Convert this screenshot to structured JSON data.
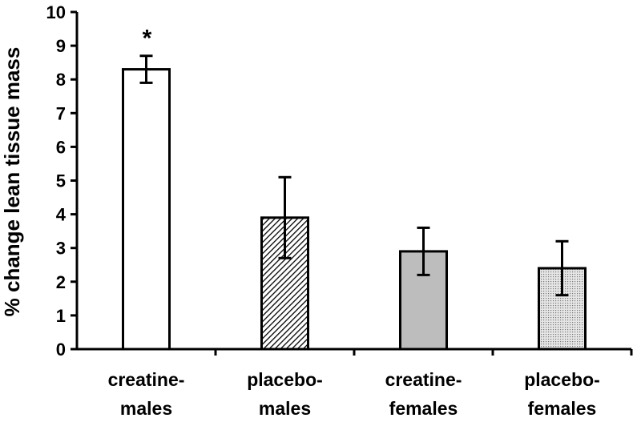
{
  "chart_data": {
    "type": "bar",
    "title": "",
    "xlabel": "",
    "ylabel": "% change lean tissue mass",
    "ylim": [
      0,
      10
    ],
    "yticks": [
      0,
      1,
      2,
      3,
      4,
      5,
      6,
      7,
      8,
      9,
      10
    ],
    "grid": false,
    "categories": [
      [
        "creatine-",
        "males"
      ],
      [
        "placebo-",
        "males"
      ],
      [
        "creatine-",
        "females"
      ],
      [
        "placebo-",
        "females"
      ]
    ],
    "values": [
      8.3,
      3.9,
      2.9,
      2.4
    ],
    "error_low": [
      7.9,
      2.7,
      2.2,
      1.6
    ],
    "error_high": [
      8.7,
      5.1,
      3.6,
      3.2
    ],
    "fills": [
      "none",
      "diagonal-hatch",
      "solid-gray",
      "dotted-light-gray"
    ],
    "colors": {
      "bar_outline": "#000000",
      "solid_gray": "#bdbdbd",
      "dotted_gray": "#d6d6d6"
    },
    "annotations": [
      {
        "category_index": 0,
        "text": "*"
      }
    ]
  }
}
